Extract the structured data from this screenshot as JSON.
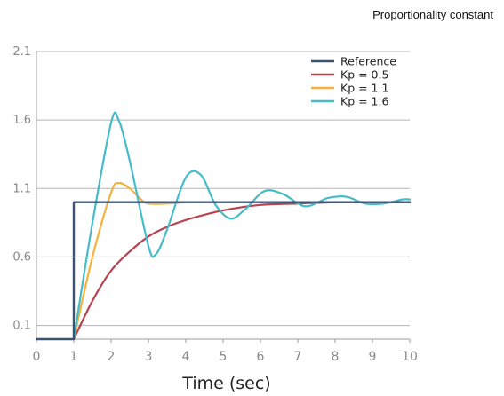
{
  "chart_data": {
    "type": "line",
    "title": "Proportionality constant",
    "xlabel": "Time (sec)",
    "ylabel": "",
    "xlim": [
      0,
      10
    ],
    "ylim": [
      0,
      2.1
    ],
    "xticks": [
      "0",
      "1",
      "2",
      "3",
      "4",
      "5",
      "6",
      "7",
      "8",
      "9",
      "10"
    ],
    "yticks": [
      "0.1",
      "0.6",
      "1.1",
      "1.6",
      "2.1"
    ],
    "grid": "horizontal",
    "legend_position": "top-right",
    "series": [
      {
        "name": "Reference",
        "color": "#3b5270",
        "x": [
          0,
          1,
          1,
          10
        ],
        "y": [
          0,
          0,
          1,
          1
        ]
      },
      {
        "name": "Kp = 0.5",
        "color": "#b8434e",
        "x": [
          1,
          1.5,
          2,
          2.5,
          3,
          3.5,
          4,
          5,
          6,
          7,
          8,
          9,
          10
        ],
        "y": [
          0,
          0.28,
          0.5,
          0.64,
          0.75,
          0.82,
          0.87,
          0.94,
          0.98,
          0.99,
          1.0,
          1.0,
          1.0
        ]
      },
      {
        "name": "Kp = 1.1",
        "color": "#f5b33e",
        "x": [
          1,
          1.5,
          2,
          2.2,
          2.5,
          2.8,
          3,
          3.5,
          4
        ],
        "y": [
          0,
          0.6,
          1.07,
          1.14,
          1.1,
          1.02,
          0.99,
          0.99,
          1.0
        ]
      },
      {
        "name": "Kp = 1.6",
        "color": "#45bcc8",
        "x": [
          1,
          1.5,
          2,
          2.2,
          2.5,
          3,
          3.2,
          3.5,
          4,
          4.4,
          4.8,
          5.2,
          5.6,
          6.1,
          6.6,
          7.2,
          7.8,
          8.3,
          8.8,
          9.3,
          9.8,
          10
        ],
        "y": [
          0,
          0.85,
          1.58,
          1.6,
          1.3,
          0.68,
          0.62,
          0.8,
          1.18,
          1.2,
          0.98,
          0.88,
          0.95,
          1.08,
          1.06,
          0.97,
          1.03,
          1.04,
          0.99,
          0.99,
          1.02,
          1.02
        ]
      }
    ]
  }
}
